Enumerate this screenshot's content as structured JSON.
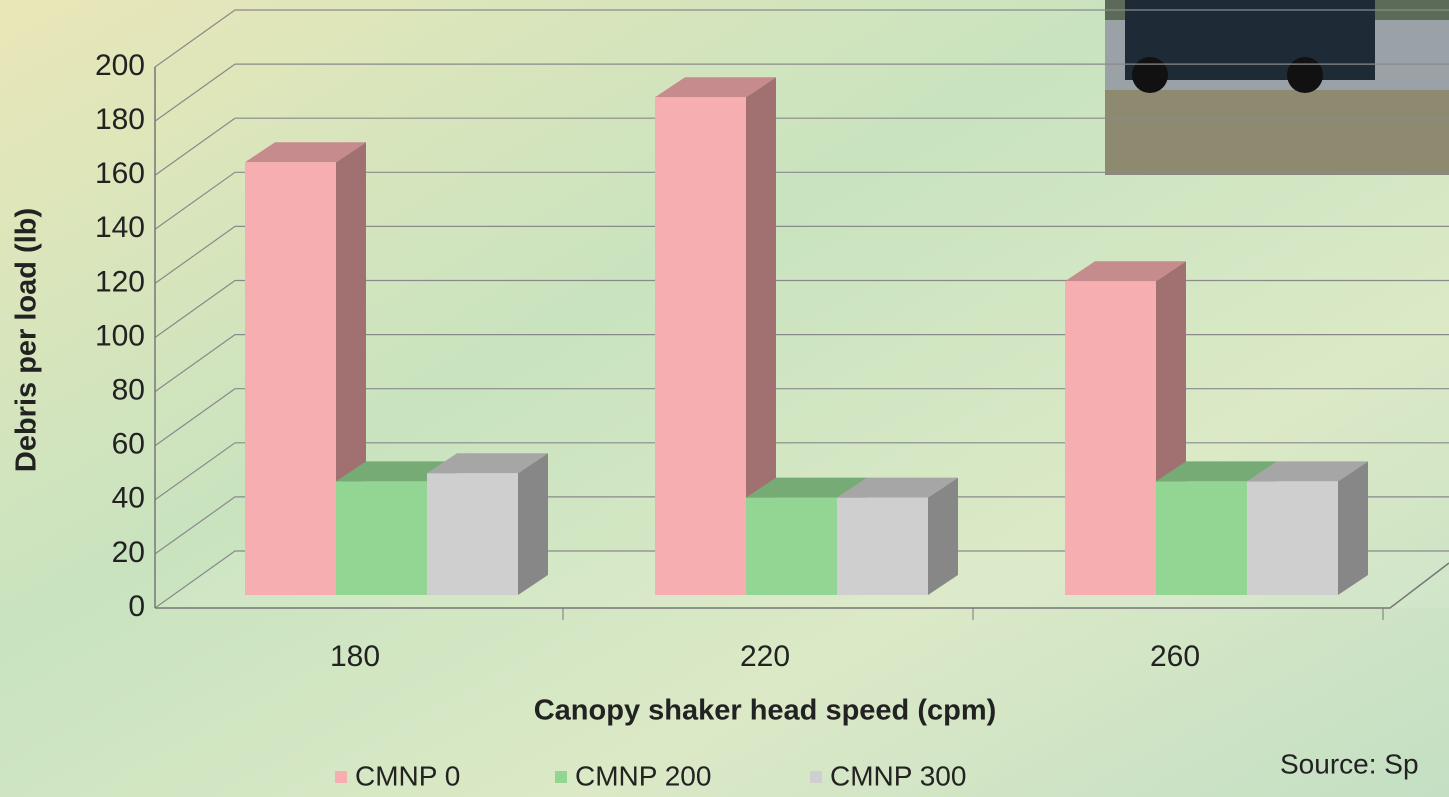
{
  "chart_data": {
    "type": "bar3d",
    "y_label": "Debris per load (lb)",
    "x_label": "Canopy shaker head speed (cpm)",
    "source": "Source: Sp",
    "categories": [
      "180",
      "220",
      "260"
    ],
    "series": [
      {
        "name": "CMNP 0",
        "color": "#f7aeb0",
        "values": [
          160,
          184,
          116
        ]
      },
      {
        "name": "CMNP 200",
        "color": "#93d693",
        "values": [
          42,
          36,
          42
        ]
      },
      {
        "name": "CMNP 300",
        "color": "#cfcfcf",
        "values": [
          45,
          36,
          42
        ]
      }
    ],
    "ylim": [
      0,
      200
    ],
    "yticks": [
      0,
      20,
      40,
      60,
      80,
      100,
      120,
      140,
      160,
      180,
      200
    ],
    "grid": true
  }
}
